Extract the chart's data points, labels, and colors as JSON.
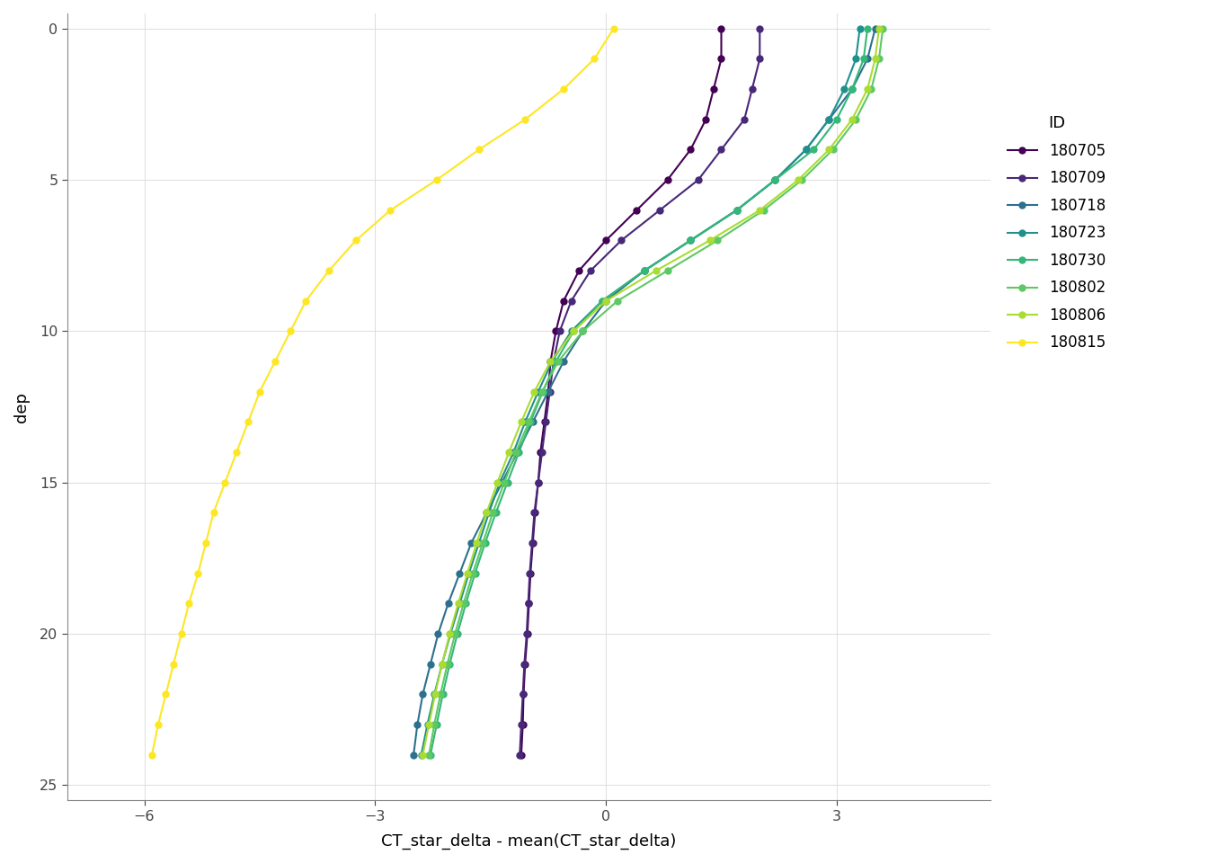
{
  "series": {
    "180705": {
      "color": "#440154",
      "dep": [
        0,
        1,
        2,
        3,
        4,
        5,
        6,
        7,
        8,
        9,
        10,
        11,
        12,
        13,
        14,
        15,
        16,
        17,
        18,
        19,
        20,
        21,
        22,
        23,
        24
      ],
      "val": [
        1.5,
        1.5,
        1.4,
        1.3,
        1.1,
        0.8,
        0.4,
        0.0,
        -0.35,
        -0.55,
        -0.65,
        -0.72,
        -0.75,
        -0.8,
        -0.85,
        -0.88,
        -0.92,
        -0.95,
        -0.98,
        -1.0,
        -1.02,
        -1.05,
        -1.07,
        -1.08,
        -1.1
      ]
    },
    "180709": {
      "color": "#482878",
      "dep": [
        0,
        1,
        2,
        3,
        4,
        5,
        6,
        7,
        8,
        9,
        10,
        11,
        12,
        13,
        14,
        15,
        16,
        17,
        18,
        19,
        20,
        21,
        22,
        23,
        24
      ],
      "val": [
        2.0,
        2.0,
        1.9,
        1.8,
        1.5,
        1.2,
        0.7,
        0.2,
        -0.2,
        -0.45,
        -0.6,
        -0.68,
        -0.73,
        -0.78,
        -0.83,
        -0.88,
        -0.93,
        -0.96,
        -0.99,
        -1.01,
        -1.03,
        -1.06,
        -1.08,
        -1.1,
        -1.12
      ]
    },
    "180718": {
      "color": "#2D708E",
      "dep": [
        0,
        1,
        2,
        3,
        4,
        5,
        6,
        7,
        8,
        9,
        10,
        11,
        12,
        13,
        14,
        15,
        16,
        17,
        18,
        19,
        20,
        21,
        22,
        23,
        24
      ],
      "val": [
        3.5,
        3.4,
        3.2,
        2.9,
        2.6,
        2.2,
        1.7,
        1.1,
        0.5,
        0.0,
        -0.3,
        -0.55,
        -0.75,
        -0.95,
        -1.15,
        -1.35,
        -1.55,
        -1.75,
        -1.9,
        -2.05,
        -2.18,
        -2.28,
        -2.38,
        -2.45,
        -2.5
      ]
    },
    "180723": {
      "color": "#20908D",
      "dep": [
        0,
        1,
        2,
        3,
        4,
        5,
        6,
        7,
        8,
        9,
        10,
        11,
        12,
        13,
        14,
        15,
        16,
        17,
        18,
        19,
        20,
        21,
        22,
        23,
        24
      ],
      "val": [
        3.3,
        3.25,
        3.1,
        2.9,
        2.6,
        2.2,
        1.7,
        1.1,
        0.5,
        -0.05,
        -0.45,
        -0.7,
        -0.88,
        -1.05,
        -1.2,
        -1.38,
        -1.52,
        -1.65,
        -1.78,
        -1.9,
        -2.02,
        -2.13,
        -2.23,
        -2.32,
        -2.4
      ]
    },
    "180730": {
      "color": "#35B779",
      "dep": [
        0,
        1,
        2,
        3,
        4,
        5,
        6,
        7,
        8,
        9,
        10,
        11,
        12,
        13,
        14,
        15,
        16,
        17,
        18,
        19,
        20,
        21,
        22,
        23,
        24
      ],
      "val": [
        3.4,
        3.35,
        3.2,
        3.0,
        2.7,
        2.2,
        1.7,
        1.1,
        0.5,
        -0.05,
        -0.42,
        -0.65,
        -0.82,
        -0.98,
        -1.13,
        -1.28,
        -1.43,
        -1.57,
        -1.7,
        -1.82,
        -1.93,
        -2.03,
        -2.12,
        -2.2,
        -2.28
      ]
    },
    "180802": {
      "color": "#5DC963",
      "dep": [
        0,
        1,
        2,
        3,
        4,
        5,
        6,
        7,
        8,
        9,
        10,
        11,
        12,
        13,
        14,
        15,
        16,
        17,
        18,
        19,
        20,
        21,
        22,
        23,
        24
      ],
      "val": [
        3.6,
        3.55,
        3.45,
        3.25,
        2.95,
        2.55,
        2.05,
        1.45,
        0.8,
        0.15,
        -0.3,
        -0.62,
        -0.83,
        -1.0,
        -1.17,
        -1.32,
        -1.47,
        -1.6,
        -1.73,
        -1.85,
        -1.96,
        -2.06,
        -2.15,
        -2.23,
        -2.3
      ]
    },
    "180806": {
      "color": "#AADC32",
      "dep": [
        0,
        1,
        2,
        3,
        4,
        5,
        6,
        7,
        8,
        9,
        10,
        11,
        12,
        13,
        14,
        15,
        16,
        17,
        18,
        19,
        20,
        21,
        22,
        23,
        24
      ],
      "val": [
        3.55,
        3.5,
        3.4,
        3.2,
        2.9,
        2.5,
        2.0,
        1.35,
        0.65,
        0.0,
        -0.42,
        -0.72,
        -0.93,
        -1.1,
        -1.26,
        -1.41,
        -1.55,
        -1.68,
        -1.8,
        -1.92,
        -2.03,
        -2.13,
        -2.22,
        -2.3,
        -2.38
      ]
    },
    "180815": {
      "color": "#FDE725",
      "dep": [
        0,
        1,
        2,
        3,
        4,
        5,
        6,
        7,
        8,
        9,
        10,
        11,
        12,
        13,
        14,
        15,
        16,
        17,
        18,
        19,
        20,
        21,
        22,
        23,
        24
      ],
      "val": [
        0.1,
        -0.15,
        -0.55,
        -1.05,
        -1.65,
        -2.2,
        -2.8,
        -3.25,
        -3.6,
        -3.9,
        -4.1,
        -4.3,
        -4.5,
        -4.65,
        -4.8,
        -4.95,
        -5.1,
        -5.2,
        -5.3,
        -5.42,
        -5.52,
        -5.62,
        -5.72,
        -5.82,
        -5.9
      ]
    }
  },
  "xlabel": "CT_star_delta - mean(CT_star_delta)",
  "ylabel": "dep",
  "xlim": [
    -7,
    5
  ],
  "ylim": [
    25.5,
    -0.5
  ],
  "xticks": [
    -6,
    -3,
    0,
    3
  ],
  "yticks": [
    0,
    5,
    10,
    15,
    20,
    25
  ],
  "legend_title": "ID",
  "background_color": "#FFFFFF",
  "plot_bg": "#FFFFFF",
  "grid_color": "#DDDDDD"
}
